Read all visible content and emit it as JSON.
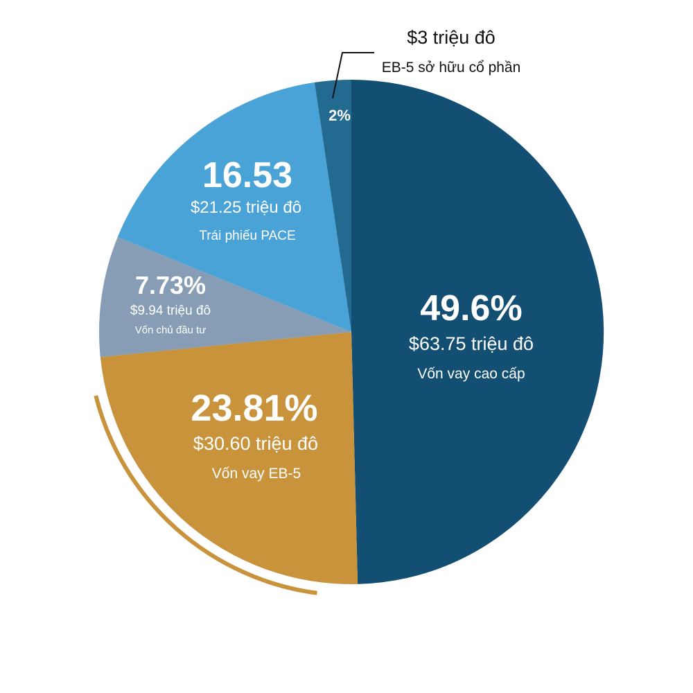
{
  "chart_data": {
    "type": "pie",
    "title": "",
    "slices": [
      {
        "pct": "49.6%",
        "value": 49.6,
        "amount": "$63.75 triệu đô",
        "label": "Vốn vay cao cấp",
        "color": "#134f73"
      },
      {
        "pct": "23.81%",
        "value": 23.81,
        "amount": "$30.60 triệu đô",
        "label": "Vốn vay EB-5",
        "color": "#c9933c"
      },
      {
        "pct": "7.73%",
        "value": 7.73,
        "amount": "$9.94 triệu đô",
        "label": "Vốn chủ đầu tư",
        "color": "#879db5"
      },
      {
        "pct": "16.53",
        "value": 16.53,
        "amount": "$21.25 triệu đô",
        "label": "Trái phiếu PACE",
        "color": "#4aa3d6"
      },
      {
        "pct": "2%",
        "value": 2.33,
        "amount": "$3 triệu đô",
        "label": "EB-5 sở hữu cổ phần",
        "color": "#236a91"
      }
    ],
    "accent_arc_color": "#c9933c"
  }
}
